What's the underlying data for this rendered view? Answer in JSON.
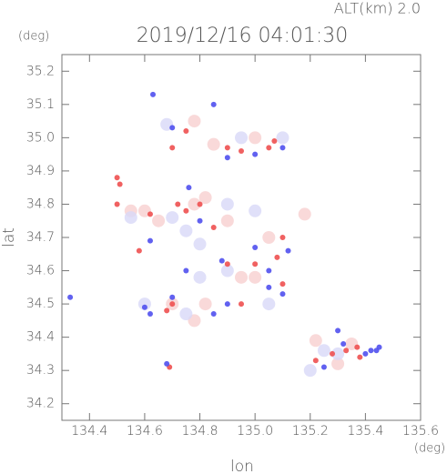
{
  "chart_data": {
    "type": "scatter",
    "title": "2019/12/16 04:01:30",
    "subtitle": "ALT(km) 2.0",
    "y_unit": "(deg)",
    "x_unit": "(deg)",
    "xlabel": "lon",
    "ylabel": "lat",
    "xlim": [
      134.3,
      135.6
    ],
    "ylim": [
      34.15,
      35.25
    ],
    "xticks": [
      134.4,
      134.6,
      134.8,
      {
        "value": 135,
        "label": "135.0"
      },
      135.2,
      135.4,
      135.6
    ],
    "yticks": [
      34.2,
      34.3,
      34.4,
      34.5,
      34.6,
      34.7,
      34.8,
      34.9,
      {
        "value": 35,
        "label": "35.0"
      },
      35.1,
      35.2
    ],
    "series": [
      {
        "color": "#f8d0d0",
        "x": [
          134.55,
          134.6,
          134.65,
          134.78,
          134.82,
          134.85,
          135.0,
          134.78,
          134.95,
          135.0,
          134.82,
          134.78,
          135.3,
          135.35,
          135.22,
          134.9,
          135.18,
          134.7,
          135.05
        ],
        "y": [
          34.78,
          34.78,
          34.75,
          34.8,
          34.82,
          34.98,
          35.0,
          35.05,
          34.58,
          34.58,
          34.5,
          34.45,
          34.32,
          34.38,
          34.39,
          34.75,
          34.77,
          34.5,
          34.7
        ]
      },
      {
        "color": "#d8d8f8",
        "x": [
          134.55,
          134.7,
          134.75,
          134.9,
          135.0,
          134.8,
          134.9,
          134.6,
          134.75,
          135.25,
          135.3,
          135.2,
          134.95,
          135.1,
          134.8,
          135.05,
          134.68
        ],
        "y": [
          34.76,
          34.76,
          34.72,
          34.8,
          34.78,
          34.58,
          34.6,
          34.5,
          34.47,
          34.36,
          34.35,
          34.3,
          35.0,
          35.0,
          34.68,
          34.5,
          35.04
        ]
      },
      {
        "color": "#ee5050",
        "x": [
          134.5,
          134.51,
          134.5,
          134.58,
          134.72,
          134.75,
          134.8,
          134.9,
          134.95,
          135.05,
          135.07,
          134.75,
          134.7,
          134.85,
          134.9,
          135.0,
          135.08,
          135.1,
          134.68,
          134.7,
          135.22,
          135.28,
          135.33,
          135.38,
          135.37,
          134.69,
          135.1,
          134.95,
          134.62
        ],
        "y": [
          34.88,
          34.86,
          34.8,
          34.66,
          34.8,
          34.78,
          34.8,
          34.97,
          34.96,
          34.97,
          34.99,
          35.02,
          34.97,
          34.73,
          34.62,
          34.62,
          34.64,
          34.7,
          34.48,
          34.5,
          34.33,
          34.35,
          34.36,
          34.34,
          34.37,
          34.31,
          34.56,
          34.5,
          34.77
        ]
      },
      {
        "color": "#5050ee",
        "x": [
          134.63,
          134.6,
          134.62,
          134.7,
          134.85,
          134.9,
          135.05,
          135.1,
          135.42,
          135.44,
          135.45,
          135.4,
          135.25,
          135.3,
          135.32,
          134.7,
          134.85,
          135.0,
          135.1,
          134.9,
          134.62,
          134.8,
          134.76,
          134.88,
          135.05,
          135.12,
          134.33,
          134.68,
          135.0,
          134.75
        ],
        "y": [
          35.13,
          34.49,
          34.47,
          34.52,
          34.47,
          34.5,
          34.55,
          34.53,
          34.36,
          34.36,
          34.37,
          34.35,
          34.31,
          34.42,
          34.38,
          35.03,
          35.1,
          34.95,
          34.97,
          34.94,
          34.69,
          34.75,
          34.85,
          34.63,
          34.6,
          34.66,
          34.52,
          34.32,
          34.67,
          34.6
        ]
      }
    ]
  }
}
